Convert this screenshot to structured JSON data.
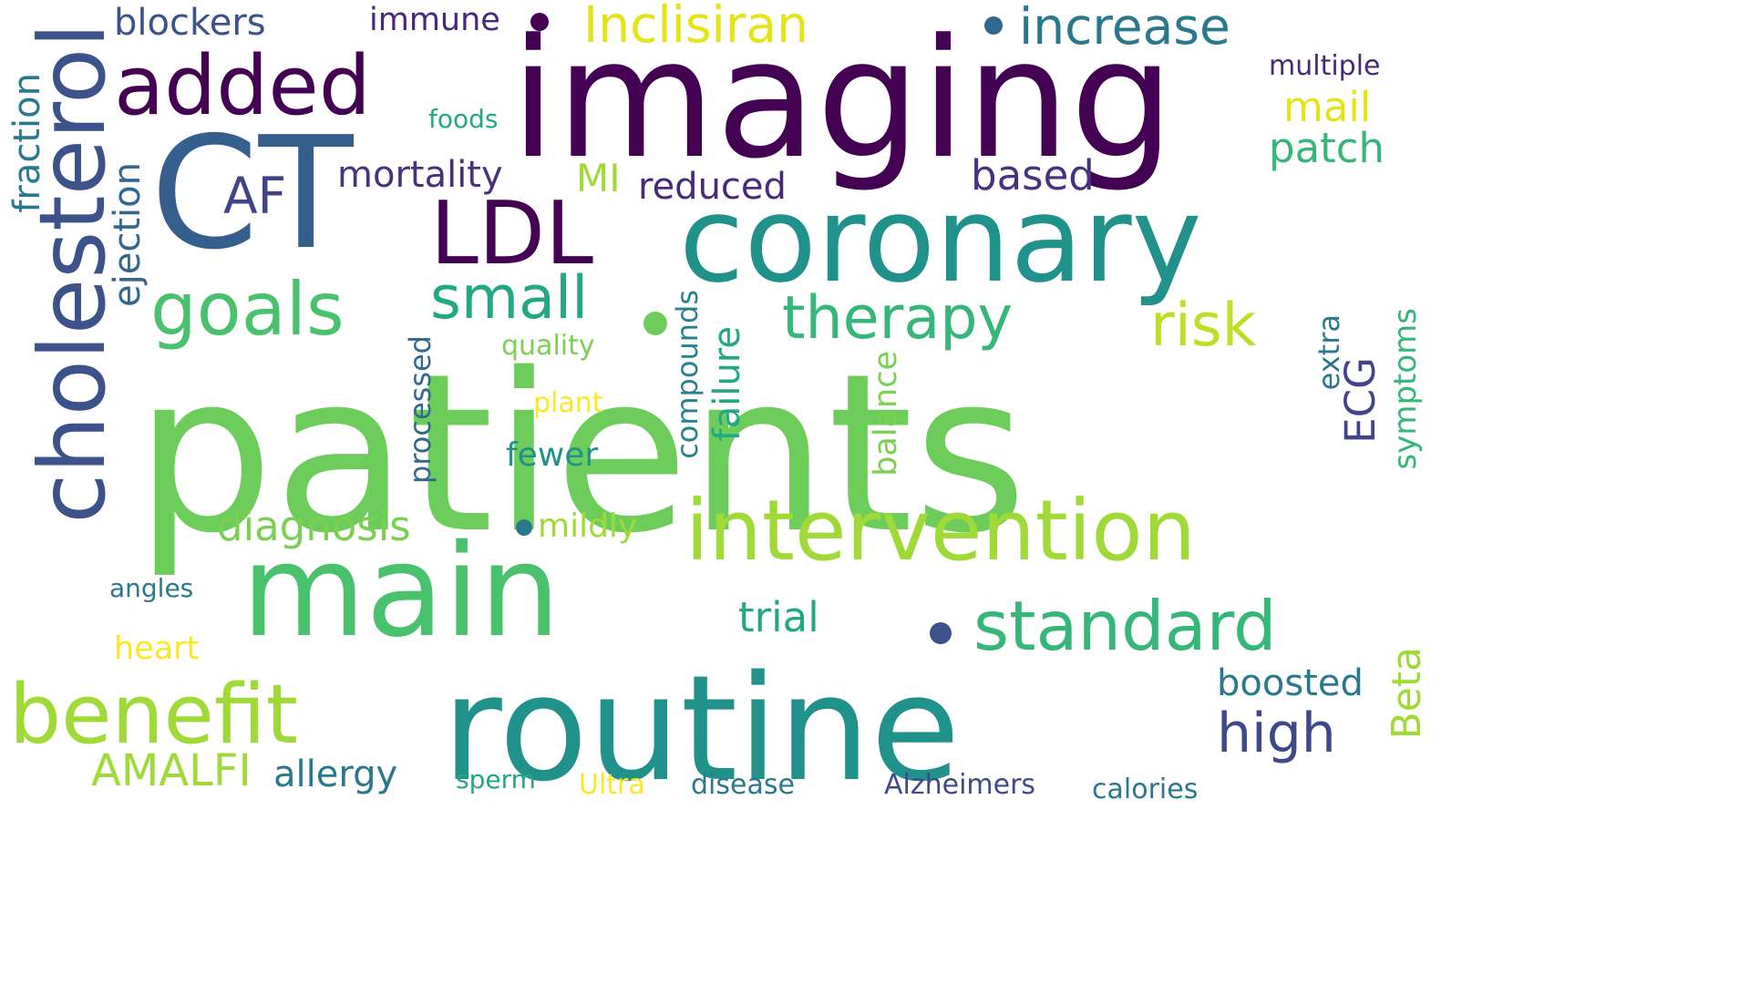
{
  "words": [
    {
      "text": "patients",
      "color": "#6ccd5a"
    },
    {
      "text": "imaging",
      "color": "#440154"
    },
    {
      "text": "routine",
      "color": "#21918c"
    },
    {
      "text": "main",
      "color": "#4ac16d"
    },
    {
      "text": "coronary",
      "color": "#21918c"
    },
    {
      "text": "CT",
      "color": "#355f8d"
    },
    {
      "text": "cholesterol",
      "color": "#3b528b"
    },
    {
      "text": "intervention",
      "color": "#a0da39"
    },
    {
      "text": "benefit",
      "color": "#a0da39"
    },
    {
      "text": "standard",
      "color": "#35b779"
    },
    {
      "text": "added",
      "color": "#440154"
    },
    {
      "text": "LDL",
      "color": "#440154"
    },
    {
      "text": "goals",
      "color": "#4ac16d"
    },
    {
      "text": "therapy",
      "color": "#35b779"
    },
    {
      "text": "small",
      "color": "#22a884"
    },
    {
      "text": "risk",
      "color": "#bddf26"
    },
    {
      "text": "high",
      "color": "#3e4989"
    },
    {
      "text": "Inclisiran",
      "color": "#e5e419"
    },
    {
      "text": "increase",
      "color": "#2a788e"
    },
    {
      "text": "AF",
      "color": "#414487"
    },
    {
      "text": "diagnosis",
      "color": "#7ad151"
    },
    {
      "text": "AMALFI",
      "color": "#a0da39"
    },
    {
      "text": "trial",
      "color": "#22a884"
    },
    {
      "text": "Beta",
      "color": "#a0da39"
    },
    {
      "text": "boosted",
      "color": "#2a788e"
    },
    {
      "text": "patch",
      "color": "#35b779"
    },
    {
      "text": "mail",
      "color": "#e5e419"
    },
    {
      "text": "based",
      "color": "#46327e"
    },
    {
      "text": "mortality",
      "color": "#46327e"
    },
    {
      "text": "reduced",
      "color": "#482878"
    },
    {
      "text": "MI",
      "color": "#a0da39"
    },
    {
      "text": "blockers",
      "color": "#3b528b"
    },
    {
      "text": "immune",
      "color": "#482878"
    },
    {
      "text": "multiple",
      "color": "#482878"
    },
    {
      "text": "foods",
      "color": "#22a884"
    },
    {
      "text": "allergy",
      "color": "#2a788e"
    },
    {
      "text": "heart",
      "color": "#fde725"
    },
    {
      "text": "angles",
      "color": "#2a788e"
    },
    {
      "text": "sperm",
      "color": "#22a884"
    },
    {
      "text": "Ultra",
      "color": "#fde725"
    },
    {
      "text": "disease",
      "color": "#2a788e"
    },
    {
      "text": "Alzheimers",
      "color": "#3e4989"
    },
    {
      "text": "calories",
      "color": "#2a788e"
    },
    {
      "text": "ECG",
      "color": "#414487"
    },
    {
      "text": "fewer",
      "color": "#21918c"
    },
    {
      "text": "mildly",
      "color": "#a0da39"
    },
    {
      "text": "quality",
      "color": "#7ad151"
    },
    {
      "text": "plant",
      "color": "#fde725"
    },
    {
      "text": "fraction",
      "color": "#2a788e"
    },
    {
      "text": "ejection",
      "color": "#31688e"
    },
    {
      "text": "processed",
      "color": "#31688e"
    },
    {
      "text": "compounds",
      "color": "#26828e"
    },
    {
      "text": "failure",
      "color": "#22a884"
    },
    {
      "text": "balance",
      "color": "#7ad151"
    },
    {
      "text": "extra",
      "color": "#2a788e"
    },
    {
      "text": "symptoms",
      "color": "#35b779"
    }
  ],
  "dots": [
    {
      "color": "#440154"
    },
    {
      "color": "#31688e"
    },
    {
      "color": "#6ccd5a"
    },
    {
      "color": "#2a788e"
    },
    {
      "color": "#3b528b"
    }
  ]
}
